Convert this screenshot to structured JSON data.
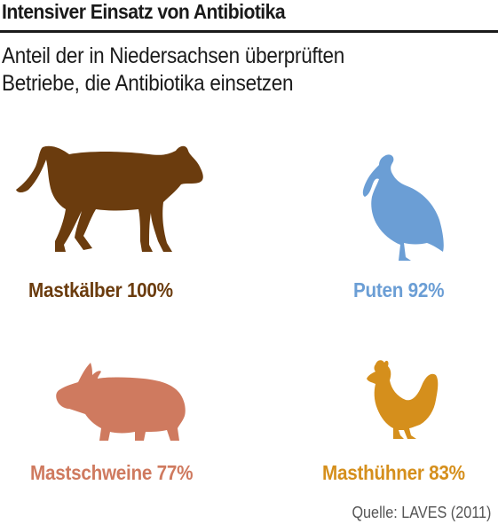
{
  "header": {
    "title": "Intensiver Einsatz von Antibiotika",
    "subtitle_line1": "Anteil der in Niedersachsen überprüften",
    "subtitle_line2": "Betriebe, die Antibiotika einsetzen"
  },
  "source": "Quelle: LAVES (2011)",
  "chart_data": {
    "type": "table",
    "title": "Intensiver Einsatz von Antibiotika",
    "subtitle": "Anteil der in Niedersachsen überprüften Betriebe, die Antibiotika einsetzen",
    "unit": "%",
    "categories": [
      "Mastkälber",
      "Puten",
      "Mastschweine",
      "Masthühner"
    ],
    "values": [
      100,
      92,
      77,
      83
    ],
    "value_labels": [
      "100%",
      "92%",
      "77%",
      "83%"
    ],
    "colors": [
      "#6b3c0e",
      "#6b9ed5",
      "#cf7a5f",
      "#d58f1c"
    ],
    "icons": [
      "calf-icon",
      "turkey-icon",
      "pig-icon",
      "chicken-icon"
    ]
  }
}
